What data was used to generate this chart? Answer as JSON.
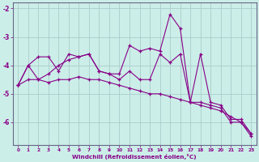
{
  "xlabel": "Windchill (Refroidissement éolien,°C)",
  "bg_color": "#cceee8",
  "line_color": "#880088",
  "grid_color": "#aacccc",
  "axis_color": "#666688",
  "xlim": [
    -0.5,
    23.5
  ],
  "ylim": [
    -6.8,
    -1.8
  ],
  "yticks": [
    -6,
    -5,
    -4,
    -3,
    -2
  ],
  "xticks": [
    0,
    1,
    2,
    3,
    4,
    5,
    6,
    7,
    8,
    9,
    10,
    11,
    12,
    13,
    14,
    15,
    16,
    17,
    18,
    19,
    20,
    21,
    22,
    23
  ],
  "lines": [
    {
      "x": [
        0,
        1,
        2,
        3,
        4,
        5,
        6,
        7,
        8,
        9,
        10,
        11,
        12,
        13,
        14,
        15,
        16,
        17,
        18,
        19,
        20,
        21,
        22,
        23
      ],
      "y": [
        -4.7,
        -4.0,
        -3.7,
        -3.7,
        -4.2,
        -3.6,
        -3.7,
        -3.6,
        -4.2,
        -4.3,
        -4.3,
        -3.3,
        -3.5,
        -3.4,
        -3.5,
        -2.2,
        -2.7,
        -5.3,
        -3.6,
        -5.3,
        -5.4,
        -5.9,
        -5.9,
        -6.4
      ]
    },
    {
      "x": [
        0,
        1,
        2,
        3,
        4,
        5,
        6,
        7,
        8,
        9,
        10,
        11,
        12,
        13,
        14,
        15,
        16,
        17,
        18,
        19,
        20,
        21,
        22,
        23
      ],
      "y": [
        -4.7,
        -4.0,
        -4.5,
        -4.3,
        -4.0,
        -3.8,
        -3.7,
        -3.6,
        -4.2,
        -4.3,
        -4.5,
        -4.2,
        -4.5,
        -4.5,
        -3.6,
        -3.9,
        -3.6,
        -5.3,
        -5.3,
        -5.4,
        -5.5,
        -6.0,
        -6.0,
        -6.5
      ]
    },
    {
      "x": [
        0,
        1,
        2,
        3,
        4,
        5,
        6,
        7,
        8,
        9,
        10,
        11,
        12,
        13,
        14,
        15,
        16,
        17,
        18,
        19,
        20,
        21,
        22,
        23
      ],
      "y": [
        -4.7,
        -4.5,
        -4.5,
        -4.6,
        -4.5,
        -4.5,
        -4.4,
        -4.5,
        -4.5,
        -4.6,
        -4.7,
        -4.8,
        -4.9,
        -5.0,
        -5.0,
        -5.1,
        -5.2,
        -5.3,
        -5.4,
        -5.5,
        -5.6,
        -5.8,
        -6.0,
        -6.4
      ]
    }
  ]
}
